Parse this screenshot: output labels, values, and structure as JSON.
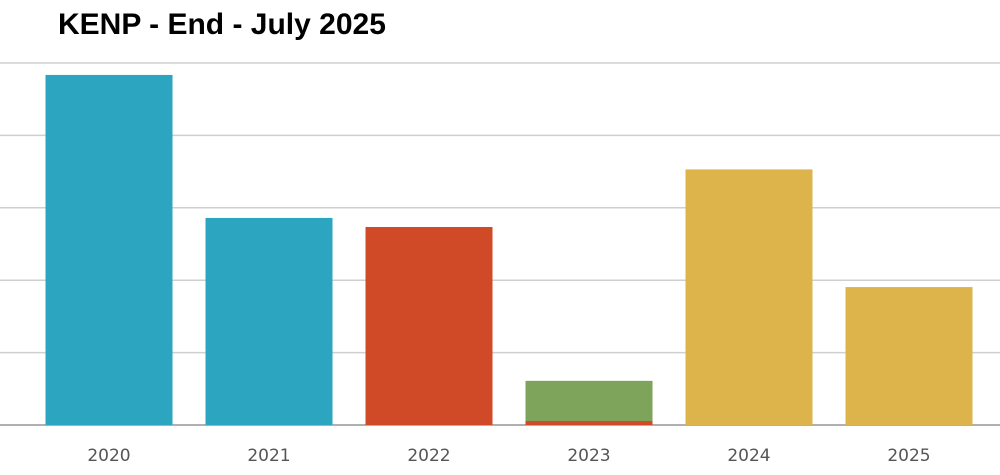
{
  "chart_data": {
    "type": "bar",
    "title": "KENP - End - July 2025",
    "xlabel": "",
    "ylabel": "",
    "grid": true,
    "legend": "none",
    "ylim": [
      0,
      100
    ],
    "y_gridlines": [
      0,
      20,
      40,
      60,
      80,
      100
    ],
    "categories": [
      "2020",
      "2021",
      "2022",
      "2023",
      "2024",
      "2025"
    ],
    "bars": [
      {
        "category": "2020",
        "segments": [
          {
            "value": 96.7,
            "color": "#2ca6c0"
          }
        ]
      },
      {
        "category": "2021",
        "segments": [
          {
            "value": 57.2,
            "color": "#2ca6c0"
          }
        ]
      },
      {
        "category": "2022",
        "segments": [
          {
            "value": 54.7,
            "color": "#d04a27"
          }
        ]
      },
      {
        "category": "2023",
        "segments": [
          {
            "value": 1.1,
            "color": "#d04a27"
          },
          {
            "value": 11.1,
            "color": "#7ea35a"
          }
        ]
      },
      {
        "category": "2024",
        "segments": [
          {
            "value": 70.6,
            "color": "#ddb44c"
          }
        ]
      },
      {
        "category": "2025",
        "segments": [
          {
            "value": 38.1,
            "color": "#ddb44c"
          }
        ]
      }
    ],
    "colors": {
      "gridline": "#cfcfcf",
      "baseline": "#b0b0b0"
    }
  }
}
